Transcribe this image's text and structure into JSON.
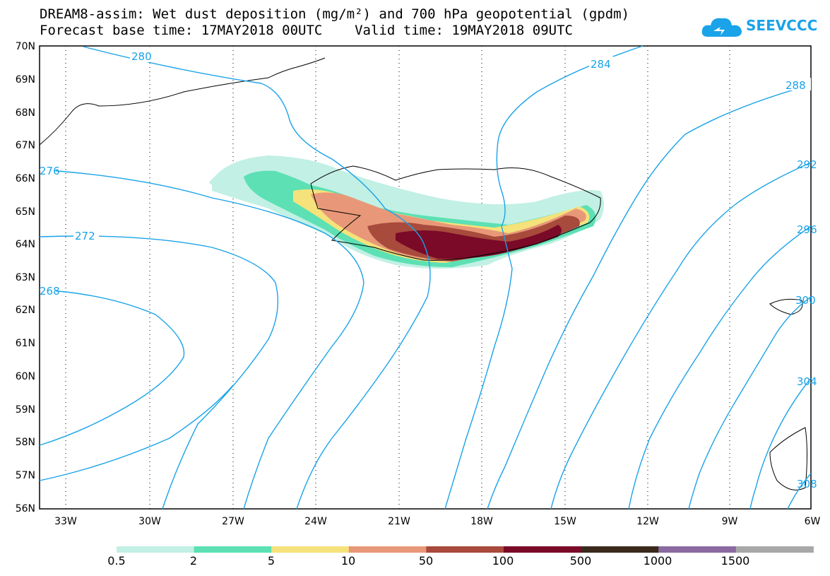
{
  "header": {
    "title_line1": "DREAM8-assim: Wet dust deposition (mg/m²) and 700 hPa geopotential (gpdm)",
    "title_line2": "Forecast base time: 17MAY2018 00UTC    Valid time: 19MAY2018 09UTC"
  },
  "logo": {
    "text": "SEEVCCC",
    "icon": "cloud-icon",
    "color": "#1aa3e8"
  },
  "map": {
    "lat_ticks": [
      "70N",
      "69N",
      "68N",
      "67N",
      "66N",
      "65N",
      "64N",
      "63N",
      "62N",
      "61N",
      "60N",
      "59N",
      "58N",
      "57N",
      "56N"
    ],
    "lon_ticks": [
      "33W",
      "30W",
      "27W",
      "24W",
      "21W",
      "18W",
      "15W",
      "12W",
      "9W",
      "6W"
    ],
    "contour_labels": [
      "280",
      "284",
      "288",
      "276",
      "272",
      "268",
      "292",
      "296",
      "300",
      "304",
      "308"
    ],
    "contour_color": "#1aa3e8"
  },
  "legend": {
    "labels": [
      "0.5",
      "2",
      "5",
      "10",
      "50",
      "100",
      "500",
      "1000",
      "1500"
    ],
    "colors": [
      "#c2f0e4",
      "#5ce0b4",
      "#f5e27a",
      "#e89878",
      "#a84a3c",
      "#7a0a28",
      "#3a2a1c",
      "#8a6aa0",
      "#a8a8a8"
    ]
  }
}
